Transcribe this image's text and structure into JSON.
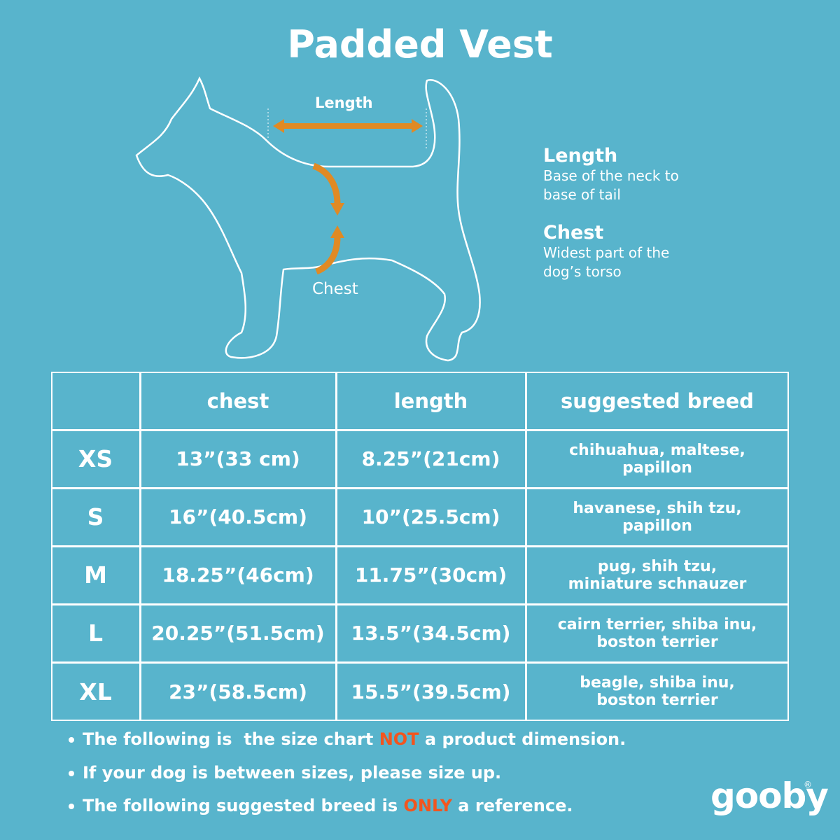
{
  "header": {
    "title": "Padded Vest"
  },
  "diagram": {
    "length_label": "Length",
    "chest_label": "Chest"
  },
  "legend": [
    {
      "term": "Length",
      "description": [
        "Base of the neck to",
        "base of tail"
      ]
    },
    {
      "term": "Chest",
      "description": [
        "Widest part of the",
        "dog’s torso"
      ]
    }
  ],
  "table": {
    "header": [
      "chest",
      "length",
      "suggested breed"
    ],
    "rows": [
      [
        "XS",
        "13”(33 cm)",
        "8.25”(21cm)",
        [
          "chihuahua, maltese,",
          "papillon"
        ]
      ],
      [
        "S",
        "16”(40.5cm)",
        "10”(25.5cm)",
        [
          "havanese, shih tzu,",
          "papillon"
        ]
      ],
      [
        "M",
        "18.25”(46cm)",
        "11.75”(30cm)",
        [
          "pug, shih tzu,",
          "miniature schnauzer"
        ]
      ],
      [
        "L",
        "20.25”(51.5cm)",
        "13.5”(34.5cm)",
        [
          "cairn terrier, shiba inu,",
          "boston terrier"
        ]
      ],
      [
        "XL",
        "23”(58.5cm)",
        "15.5”(39.5cm)",
        [
          "beagle, shiba inu,",
          "boston terrier"
        ]
      ]
    ]
  },
  "notes": [
    [
      "The following is  the size chart ",
      "NOT",
      " a product dimension."
    ],
    [
      "If your dog is between sizes, please size up."
    ],
    [
      "The following suggested breed is ",
      "ONLY",
      " a reference."
    ]
  ],
  "logo": {
    "name": "gooby",
    "mark": "®"
  }
}
